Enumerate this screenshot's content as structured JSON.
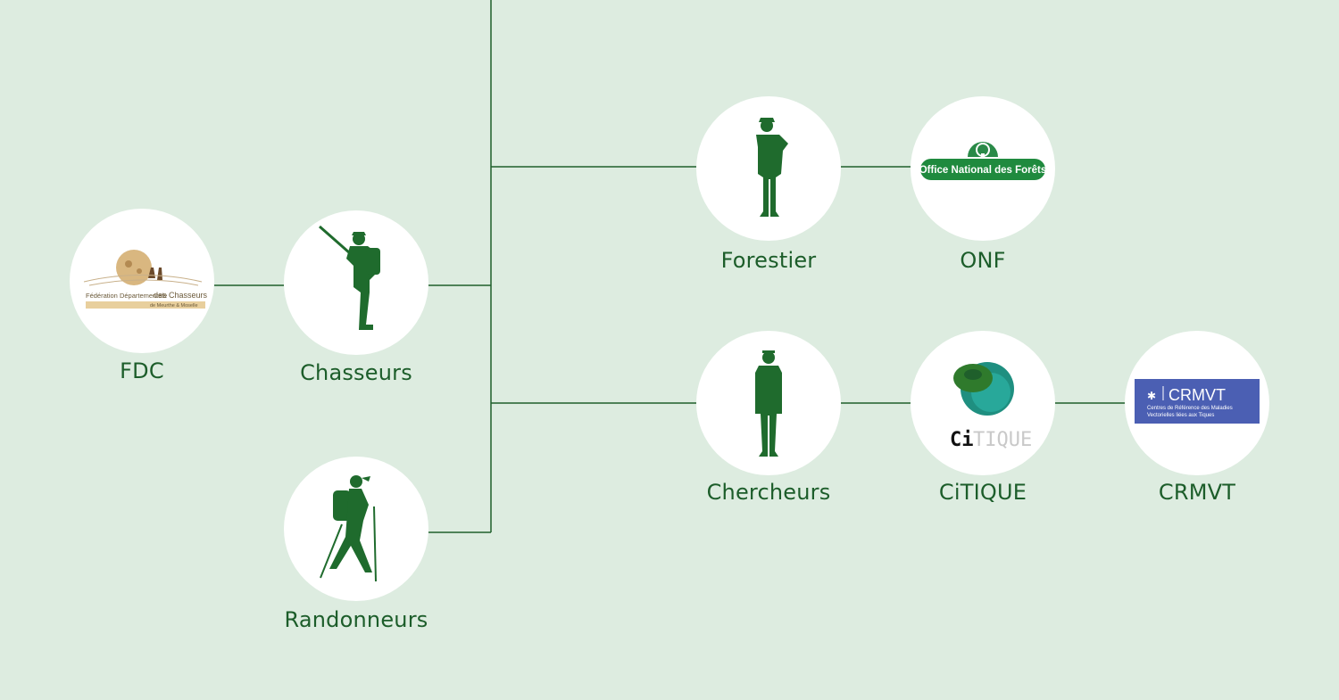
{
  "colors": {
    "background": "#ddece0",
    "line": "#1f5f2b",
    "silhouette": "#1f6b2d",
    "label": "#1c5d2a"
  },
  "nodes": {
    "fdc": {
      "label": "FDC",
      "logo_line1": "Fédération Départementale",
      "logo_line2": "des Chasseurs",
      "logo_line3": "de Meurthe & Moselle"
    },
    "chasseurs": {
      "label": "Chasseurs",
      "icon": "hunter-silhouette"
    },
    "randonneurs": {
      "label": "Randonneurs",
      "icon": "hiker-silhouette"
    },
    "forestier": {
      "label": "Forestier",
      "icon": "forester-silhouette"
    },
    "onf": {
      "label": "ONF",
      "logo_text": "Office National des Forêts"
    },
    "chercheurs": {
      "label": "Chercheurs",
      "icon": "researcher-silhouette"
    },
    "citique": {
      "label": "CiTIQUE",
      "logo_ci": "Ci",
      "logo_tique": "TIQUE"
    },
    "crmvt": {
      "label": "CRMVT",
      "logo_title": "CRMVT",
      "logo_sub1": "Centres de Référence des Maladies",
      "logo_sub2": "Vectorielles liées aux Tiques"
    }
  }
}
